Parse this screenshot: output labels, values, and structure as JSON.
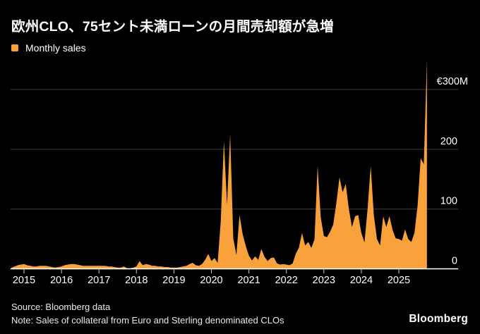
{
  "title": "欧州CLO、75セント未満ローンの月間売却額が急増",
  "legend": {
    "monthly_sales_label": "Monthly sales"
  },
  "footer": {
    "source": "Source: Bloomberg data",
    "note": "Note: Sales of collateral from Euro and Sterling denominated CLOs",
    "logo": "Bloomberg"
  },
  "colors": {
    "background": "#000000",
    "series_orange": "#F9A13B",
    "gridline": "#3D3D3D",
    "axis_line": "#FFFFFF",
    "tick_mark": "#CFCFCF",
    "label_text": "#FFFFFF"
  },
  "chart_data": {
    "type": "area",
    "title": "欧州CLO、75セント未満ローンの月間売却額が急増",
    "unit": "EUR millions",
    "grid": "horizontal",
    "legend_position": "top-left",
    "ylim": [
      0,
      360
    ],
    "y_ticks": [
      {
        "value": 300,
        "label": "€300M"
      },
      {
        "value": 200,
        "label": "200"
      },
      {
        "value": 100,
        "label": "100"
      },
      {
        "value": 0,
        "label": "0"
      }
    ],
    "x_ticks": [
      "2015",
      "2016",
      "2017",
      "2018",
      "2019",
      "2020",
      "2021",
      "2022",
      "2023",
      "2024",
      "2025"
    ],
    "series": [
      {
        "name": "Monthly sales",
        "color": "#F9A13B",
        "start_month": "2014-09",
        "end_month": "2025-10",
        "frequency": "monthly",
        "values_eur_millions": [
          2,
          4,
          6,
          7,
          8,
          6,
          5,
          4,
          4,
          5,
          5,
          5,
          4,
          3,
          2,
          3,
          4,
          6,
          7,
          8,
          8,
          7,
          6,
          5,
          5,
          5,
          5,
          5,
          5,
          5,
          5,
          4,
          4,
          3,
          2,
          2,
          4,
          1,
          1,
          2,
          4,
          13,
          6,
          8,
          7,
          5,
          5,
          4,
          4,
          3,
          3,
          2,
          2,
          2,
          3,
          4,
          5,
          8,
          10,
          6,
          5,
          8,
          15,
          25,
          13,
          18,
          10,
          80,
          214,
          107,
          225,
          51,
          23,
          90,
          58,
          38,
          22,
          14,
          21,
          15,
          33,
          20,
          13,
          18,
          19,
          9,
          7,
          8,
          7,
          6,
          9,
          25,
          35,
          60,
          39,
          45,
          35,
          49,
          172,
          86,
          55,
          53,
          62,
          74,
          110,
          153,
          128,
          142,
          100,
          70,
          88,
          90,
          60,
          44,
          100,
          172,
          90,
          50,
          39,
          88,
          70,
          88,
          65,
          51,
          50,
          47,
          66,
          50,
          45,
          60,
          105,
          185,
          175,
          350
        ]
      }
    ]
  }
}
